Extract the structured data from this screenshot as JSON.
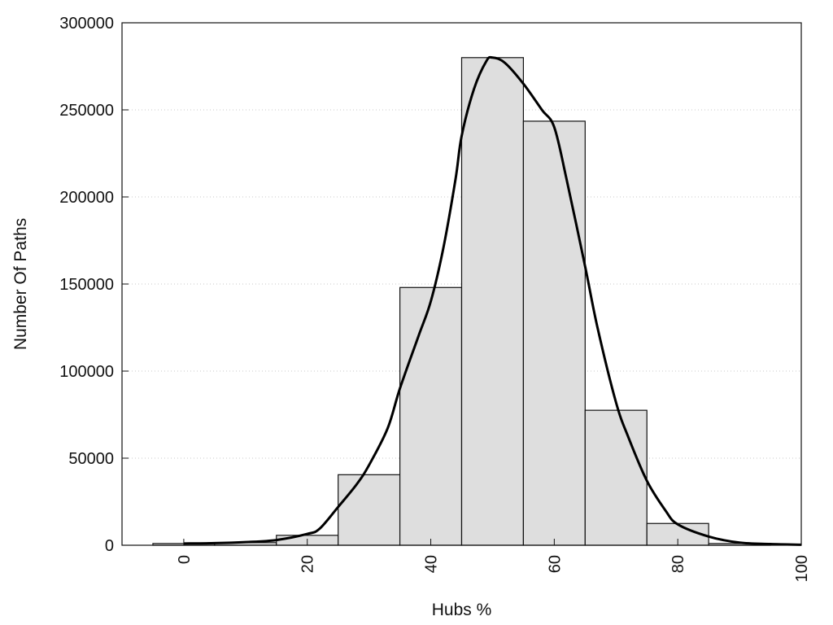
{
  "chart_data": {
    "type": "bar",
    "xlabel": "Hubs %",
    "ylabel": "Number Of Paths",
    "xlim": [
      -10,
      100
    ],
    "ylim": [
      0,
      300000
    ],
    "grid": true,
    "legend": "none",
    "x_ticks": [
      0,
      20,
      40,
      60,
      80,
      100
    ],
    "y_ticks": [
      0,
      50000,
      100000,
      150000,
      200000,
      250000,
      300000
    ],
    "bins": [
      {
        "start": -5,
        "end": 5,
        "value": 1000
      },
      {
        "start": 5,
        "end": 15,
        "value": 1500
      },
      {
        "start": 15,
        "end": 25,
        "value": 5700
      },
      {
        "start": 25,
        "end": 35,
        "value": 40500
      },
      {
        "start": 35,
        "end": 45,
        "value": 148000
      },
      {
        "start": 45,
        "end": 55,
        "value": 280000
      },
      {
        "start": 55,
        "end": 65,
        "value": 243500
      },
      {
        "start": 65,
        "end": 75,
        "value": 77500
      },
      {
        "start": 75,
        "end": 85,
        "value": 12500
      },
      {
        "start": 85,
        "end": 95,
        "value": 1000
      }
    ],
    "density_curve": {
      "x": [
        0,
        5,
        10,
        15,
        20,
        22,
        25,
        28,
        30,
        33,
        35,
        38,
        40,
        42,
        44,
        45,
        47,
        49,
        50,
        52,
        55,
        58,
        60,
        62,
        65,
        67,
        70,
        72,
        75,
        78,
        80,
        85,
        90,
        95,
        100
      ],
      "y": [
        1000,
        1200,
        1800,
        3000,
        6500,
        9500,
        22000,
        35000,
        46000,
        67000,
        90000,
        120000,
        140000,
        170000,
        210000,
        235000,
        262000,
        278000,
        280000,
        277000,
        265000,
        250000,
        240000,
        210000,
        160000,
        125000,
        82000,
        62000,
        37000,
        20000,
        12000,
        5000,
        1500,
        700,
        300
      ]
    },
    "colors": {
      "bar_fill": "#dedede",
      "bar_stroke": "#111111",
      "curve": "#000000",
      "grid": "#c8c8c8"
    }
  }
}
